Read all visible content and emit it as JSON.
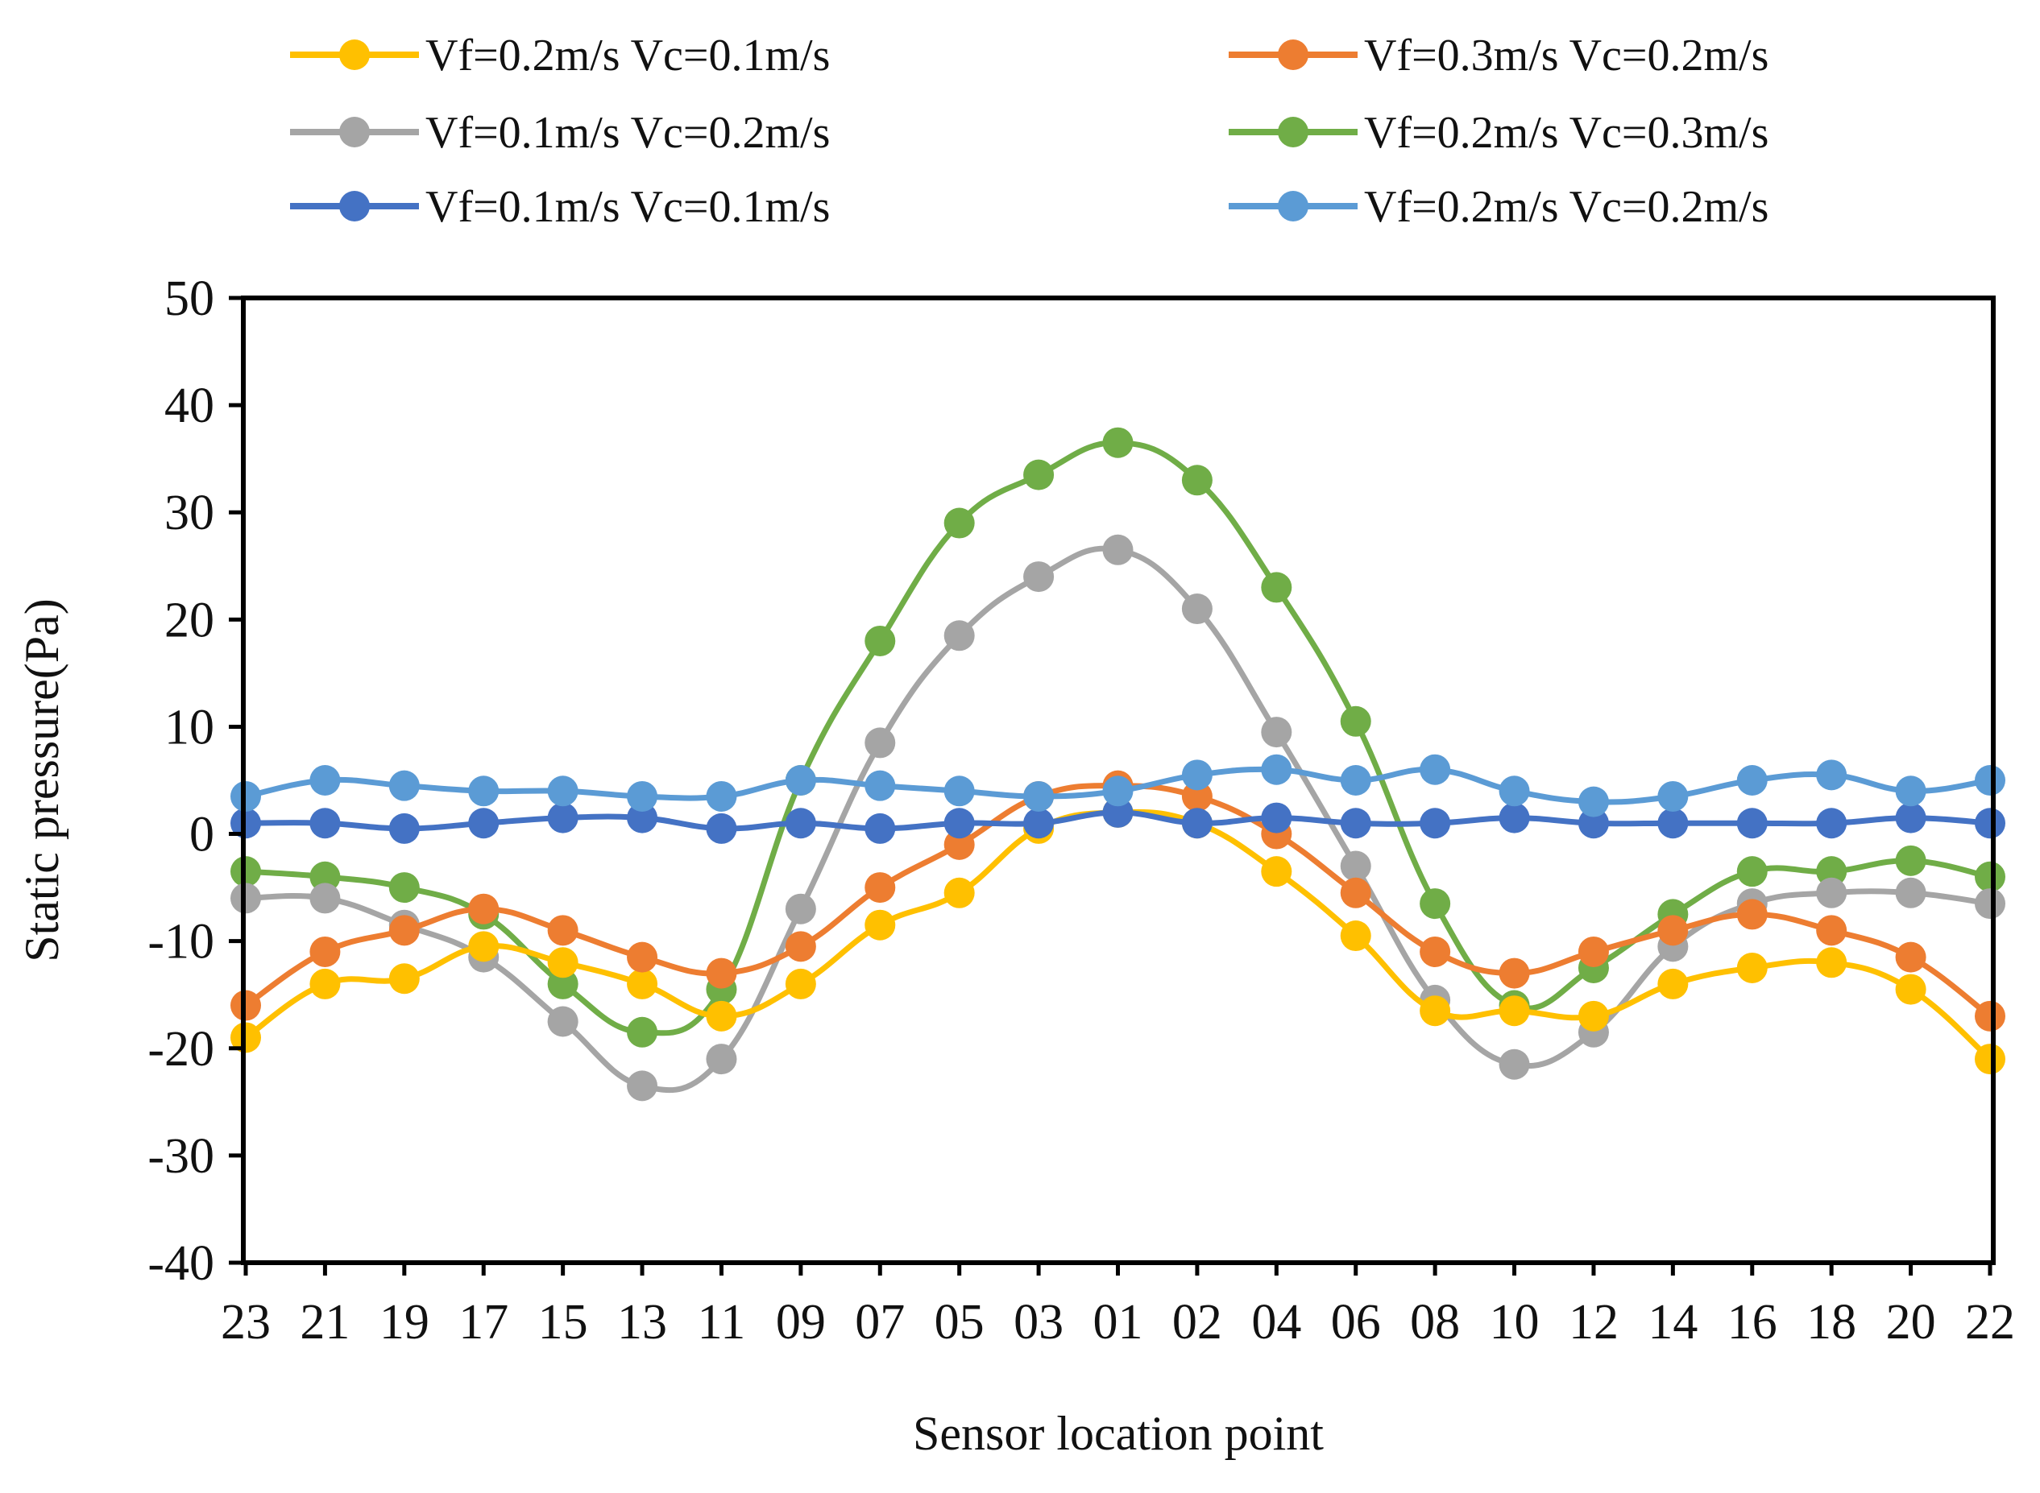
{
  "chart_data": {
    "type": "line",
    "title": "",
    "xlabel": "Sensor location point",
    "ylabel": "Static pressure(Pa)",
    "ylim": [
      -40,
      50
    ],
    "yticks": [
      -40,
      -30,
      -20,
      -10,
      0,
      10,
      20,
      30,
      40,
      50
    ],
    "grid": false,
    "legend_position": "top",
    "categories": [
      "23",
      "21",
      "19",
      "17",
      "15",
      "13",
      "11",
      "09",
      "07",
      "05",
      "03",
      "01",
      "02",
      "04",
      "06",
      "08",
      "10",
      "12",
      "14",
      "16",
      "18",
      "20",
      "22"
    ],
    "series": [
      {
        "name": "Vf=0.2m/s Vc=0.1m/s",
        "color": "#FFC000",
        "values": [
          -19,
          -14,
          -13.5,
          -10.5,
          -12,
          -14,
          -17,
          -14,
          -8.5,
          -5.5,
          0.5,
          2,
          1,
          -3.5,
          -9.5,
          -16.5,
          -16.5,
          -17,
          -14,
          -12.5,
          -12,
          -14.5,
          -21
        ]
      },
      {
        "name": "Vf=0.3m/s Vc=0.2m/s",
        "color": "#ED7D31",
        "values": [
          -16,
          -11,
          -9,
          -7,
          -9,
          -11.5,
          -13,
          -10.5,
          -5,
          -1,
          3.5,
          4.5,
          3.5,
          0,
          -5.5,
          -11,
          -13,
          -11,
          -9,
          -7.5,
          -9,
          -11.5,
          -17
        ]
      },
      {
        "name": "Vf=0.1m/s Vc=0.2m/s",
        "color": "#A5A5A5",
        "values": [
          -6,
          -6,
          -8.5,
          -11.5,
          -17.5,
          -23.5,
          -21,
          -7,
          8.5,
          18.5,
          24,
          26.5,
          21,
          9.5,
          -3,
          -15.5,
          -21.5,
          -18.5,
          -10.5,
          -6.5,
          -5.5,
          -5.5,
          -6.5
        ]
      },
      {
        "name": "Vf=0.2m/s Vc=0.3m/s",
        "color": "#70AD47",
        "values": [
          -3.5,
          -4,
          -5,
          -7.5,
          -14,
          -18.5,
          -14.5,
          5,
          18,
          29,
          33.5,
          36.5,
          33,
          23,
          10.5,
          -6.5,
          -16,
          -12.5,
          -7.5,
          -3.5,
          -3.5,
          -2.5,
          -4
        ]
      },
      {
        "name": "Vf=0.1m/s Vc=0.1m/s",
        "color": "#4472C4",
        "values": [
          1,
          1,
          0.5,
          1,
          1.5,
          1.5,
          0.5,
          1,
          0.5,
          1,
          1,
          2,
          1,
          1.5,
          1,
          1,
          1.5,
          1,
          1,
          1,
          1,
          1.5,
          1
        ]
      },
      {
        "name": "Vf=0.2m/s Vc=0.2m/s",
        "color": "#5B9BD5",
        "values": [
          3.5,
          5,
          4.5,
          4,
          4,
          3.5,
          3.5,
          5,
          4.5,
          4,
          3.5,
          4,
          5.5,
          6,
          5,
          6,
          4,
          3,
          3.5,
          5,
          5.5,
          4,
          5
        ]
      }
    ]
  }
}
